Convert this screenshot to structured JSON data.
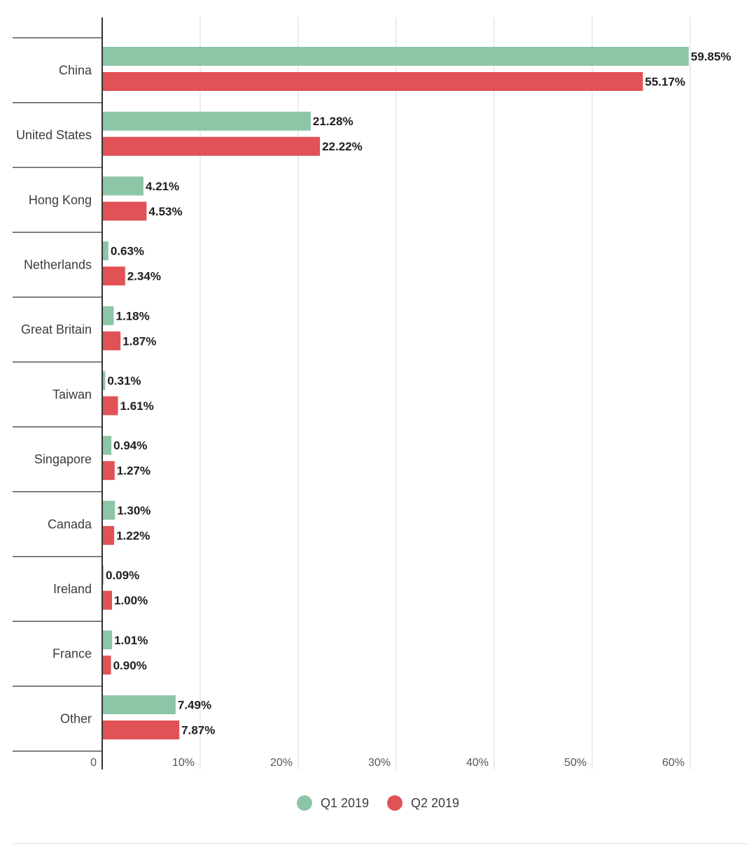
{
  "chart_data": {
    "type": "bar",
    "orientation": "horizontal",
    "categories": [
      "China",
      "United States",
      "Hong Kong",
      "Netherlands",
      "Great Britain",
      "Taiwan",
      "Singapore",
      "Canada",
      "Ireland",
      "France",
      "Other"
    ],
    "series": [
      {
        "name": "Q1 2019",
        "color": "#8dc5a7",
        "values": [
          59.85,
          21.28,
          4.21,
          0.63,
          1.18,
          0.31,
          0.94,
          1.3,
          0.09,
          1.01,
          7.49
        ],
        "labels": [
          "59.85%",
          "21.28%",
          "4.21%",
          "0.63%",
          "1.18%",
          "0.31%",
          "0.94%",
          "1.30%",
          "0.09%",
          "1.01%",
          "7.49%"
        ]
      },
      {
        "name": "Q2 2019",
        "color": "#e05255",
        "values": [
          55.17,
          22.22,
          4.53,
          2.34,
          1.87,
          1.61,
          1.27,
          1.22,
          1.0,
          0.9,
          7.87
        ],
        "labels": [
          "55.17%",
          "22.22%",
          "4.53%",
          "2.34%",
          "1.87%",
          "1.61%",
          "1.27%",
          "1.22%",
          "1.00%",
          "0.90%",
          "7.87%"
        ]
      }
    ],
    "xlim": [
      0,
      60
    ],
    "x_ticks": [
      0,
      10,
      20,
      30,
      40,
      50,
      60
    ],
    "x_tick_labels": [
      "0",
      "10%",
      "20%",
      "30%",
      "40%",
      "50%",
      "60%"
    ],
    "grid": true,
    "legend_position": "bottom-center"
  }
}
